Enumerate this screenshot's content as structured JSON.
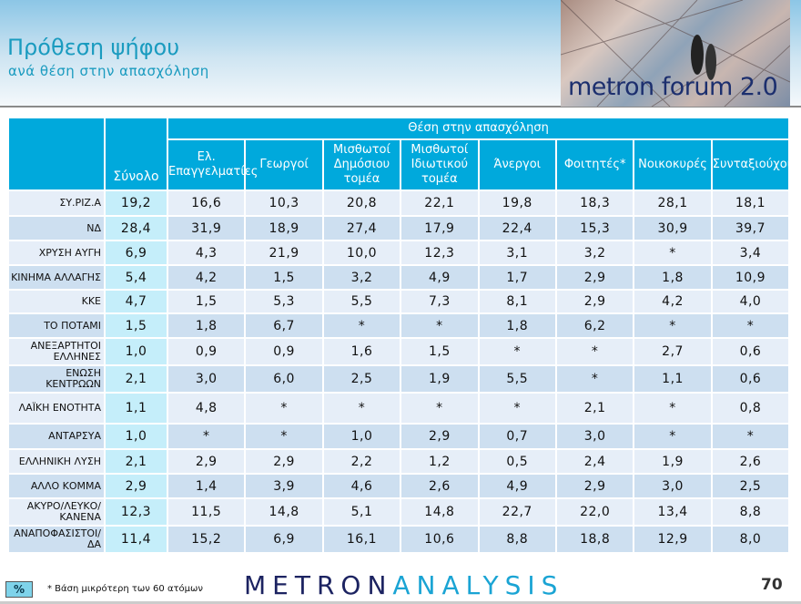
{
  "title": "Πρόθεση ψήφου",
  "subtitle": "ανά θέση στην απασχόληση",
  "brand_image_text": "metron forum 2.0",
  "table": {
    "group_header": "Θέση στην απασχόληση",
    "total_header": "Σύνολο",
    "columns": [
      "Ελ. Επαγγελματίες",
      "Γεωργοί",
      "Μισθωτοί Δημόσιου τομέα",
      "Μισθωτοί Ιδιωτικού τομέα",
      "Άνεργοι",
      "Φοιτητές*",
      "Νοικοκυρές",
      "Συνταξιούχοι"
    ],
    "rows": [
      {
        "label": "ΣΥ.ΡΙΖ.Α",
        "total": "19,2",
        "values": [
          "16,6",
          "10,3",
          "20,8",
          "22,1",
          "19,8",
          "18,3",
          "28,1",
          "18,1"
        ]
      },
      {
        "label": "ΝΔ",
        "total": "28,4",
        "values": [
          "31,9",
          "18,9",
          "27,4",
          "17,9",
          "22,4",
          "15,3",
          "30,9",
          "39,7"
        ]
      },
      {
        "label": "ΧΡΥΣΗ ΑΥΓΗ",
        "total": "6,9",
        "values": [
          "4,3",
          "21,9",
          "10,0",
          "12,3",
          "3,1",
          "3,2",
          "*",
          "3,4"
        ]
      },
      {
        "label": "ΚΙΝΗΜΑ ΑΛΛΑΓΗΣ",
        "total": "5,4",
        "values": [
          "4,2",
          "1,5",
          "3,2",
          "4,9",
          "1,7",
          "2,9",
          "1,8",
          "10,9"
        ]
      },
      {
        "label": "ΚΚΕ",
        "total": "4,7",
        "values": [
          "1,5",
          "5,3",
          "5,5",
          "7,3",
          "8,1",
          "2,9",
          "4,2",
          "4,0"
        ]
      },
      {
        "label": "ΤΟ ΠΟΤΑΜΙ",
        "total": "1,5",
        "values": [
          "1,8",
          "6,7",
          "*",
          "*",
          "1,8",
          "6,2",
          "*",
          "*"
        ]
      },
      {
        "label": "ΑΝΕΞΑΡΤΗΤΟΙ ΕΛΛΗΝΕΣ",
        "total": "1,0",
        "values": [
          "0,9",
          "0,9",
          "1,6",
          "1,5",
          "*",
          "*",
          "2,7",
          "0,6"
        ]
      },
      {
        "label": "ΕΝΩΣΗ ΚΕΝΤΡΩΩΝ",
        "total": "2,1",
        "values": [
          "3,0",
          "6,0",
          "2,5",
          "1,9",
          "5,5",
          "*",
          "1,1",
          "0,6"
        ]
      },
      {
        "label": "ΛΑΪΚΗ ΕΝΟΤΗΤΑ",
        "total": "1,1",
        "values": [
          "4,8",
          "*",
          "*",
          "*",
          "*",
          "2,1",
          "*",
          "0,8"
        ]
      },
      {
        "label": "ΑΝΤΑΡΣΥΑ",
        "total": "1,0",
        "values": [
          "*",
          "*",
          "1,0",
          "2,9",
          "0,7",
          "3,0",
          "*",
          "*"
        ]
      },
      {
        "label": "ΕΛΛΗΝΙΚΗ ΛΥΣΗ",
        "total": "2,1",
        "values": [
          "2,9",
          "2,9",
          "2,2",
          "1,2",
          "0,5",
          "2,4",
          "1,9",
          "2,6"
        ]
      },
      {
        "label": "ΑΛΛΟ ΚΟΜΜΑ",
        "total": "2,9",
        "values": [
          "1,4",
          "3,9",
          "4,6",
          "2,6",
          "4,9",
          "2,9",
          "3,0",
          "2,5"
        ]
      },
      {
        "label": "ΑΚΥΡΟ/ΛΕΥΚΟ/ ΚΑΝΕΝΑ",
        "total": "12,3",
        "values": [
          "11,5",
          "14,8",
          "5,1",
          "14,8",
          "22,7",
          "22,0",
          "13,4",
          "8,8"
        ]
      },
      {
        "label": "ΑΝΑΠΟΦΑΣΙΣΤΟΙ/ ΔΑ",
        "total": "11,4",
        "values": [
          "15,2",
          "6,9",
          "16,1",
          "10,6",
          "8,8",
          "18,8",
          "12,9",
          "8,0"
        ]
      }
    ]
  },
  "footer": {
    "unit": "%",
    "note": "* Βάση μικρότερη των 60 ατόμων",
    "logo_a": "METRON",
    "logo_b": "ANALYSIS",
    "page": "70"
  },
  "colors": {
    "header": "#00a9dc",
    "total_col": "#c5eefa",
    "row_a": "#e6eef8",
    "row_b": "#cddff0",
    "title": "#1a9bbf"
  }
}
